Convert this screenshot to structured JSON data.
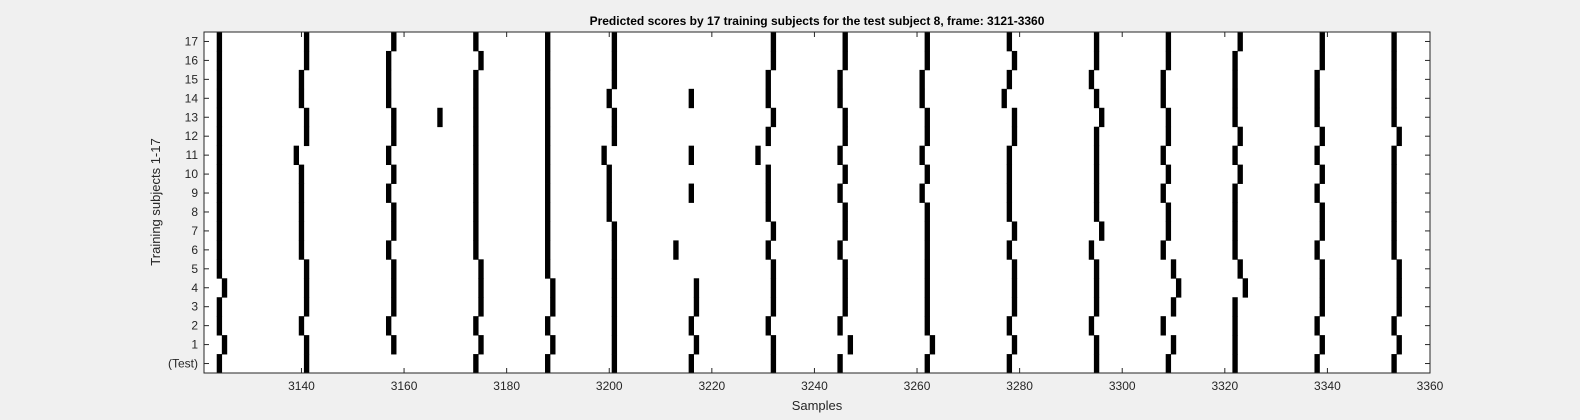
{
  "chart_data": {
    "type": "heatmap",
    "title": "Predicted scores by 17 training subjects for the test subject 8, frame: 3121-3360",
    "xlabel": "Samples",
    "ylabel": "Training subjects 1-17",
    "xlim": [
      3121,
      3360
    ],
    "x_ticks": [
      3140,
      3160,
      3180,
      3200,
      3220,
      3240,
      3260,
      3280,
      3300,
      3320,
      3340,
      3360
    ],
    "row_labels": [
      "(Test)",
      "1",
      "2",
      "3",
      "4",
      "5",
      "6",
      "7",
      "8",
      "9",
      "10",
      "11",
      "12",
      "13",
      "14",
      "15",
      "16",
      "17"
    ],
    "grid": false,
    "rows": [
      {
        "label": "(Test)",
        "marks": [
          3124,
          3141,
          3174,
          3188,
          3201,
          3216,
          3232,
          3245,
          3262,
          3278,
          3295,
          3309,
          3322,
          3338,
          3353
        ]
      },
      {
        "label": "1",
        "marks": [
          3125,
          3141,
          3158,
          3175,
          3189,
          3201,
          3217,
          3232,
          3247,
          3263,
          3279,
          3295,
          3310,
          3322,
          3339,
          3354
        ]
      },
      {
        "label": "2",
        "marks": [
          3124,
          3140,
          3157,
          3174,
          3188,
          3201,
          3216,
          3231,
          3245,
          3262,
          3278,
          3294,
          3308,
          3322,
          3338,
          3353
        ]
      },
      {
        "label": "3",
        "marks": [
          3124,
          3141,
          3158,
          3175,
          3189,
          3201,
          3217,
          3232,
          3246,
          3262,
          3279,
          3295,
          3310,
          3322,
          3339,
          3354
        ]
      },
      {
        "label": "4",
        "marks": [
          3125,
          3141,
          3158,
          3175,
          3189,
          3201,
          3217,
          3232,
          3246,
          3262,
          3279,
          3295,
          3311,
          3324,
          3339,
          3354
        ]
      },
      {
        "label": "5",
        "marks": [
          3124,
          3141,
          3158,
          3175,
          3188,
          3201,
          3232,
          3246,
          3262,
          3279,
          3295,
          3310,
          3323,
          3339,
          3354
        ]
      },
      {
        "label": "6",
        "marks": [
          3124,
          3140,
          3157,
          3174,
          3188,
          3201,
          3213,
          3231,
          3245,
          3262,
          3278,
          3294,
          3308,
          3322,
          3338,
          3353
        ]
      },
      {
        "label": "7",
        "marks": [
          3124,
          3140,
          3158,
          3174,
          3188,
          3201,
          3232,
          3246,
          3262,
          3279,
          3296,
          3309,
          3322,
          3339,
          3353
        ]
      },
      {
        "label": "8",
        "marks": [
          3124,
          3140,
          3158,
          3174,
          3188,
          3200,
          3231,
          3246,
          3262,
          3278,
          3295,
          3309,
          3322,
          3339,
          3353
        ]
      },
      {
        "label": "9",
        "marks": [
          3124,
          3140,
          3157,
          3174,
          3188,
          3200,
          3216,
          3231,
          3245,
          3261,
          3278,
          3295,
          3308,
          3322,
          3338,
          3353
        ]
      },
      {
        "label": "10",
        "marks": [
          3124,
          3140,
          3158,
          3174,
          3188,
          3200,
          3231,
          3246,
          3262,
          3278,
          3295,
          3309,
          3323,
          3339,
          3353
        ]
      },
      {
        "label": "11",
        "marks": [
          3124,
          3139,
          3157,
          3174,
          3188,
          3199,
          3216,
          3229,
          3245,
          3261,
          3278,
          3295,
          3308,
          3322,
          3338,
          3353
        ]
      },
      {
        "label": "12",
        "marks": [
          3124,
          3141,
          3158,
          3174,
          3188,
          3201,
          3231,
          3246,
          3262,
          3279,
          3295,
          3309,
          3323,
          3339,
          3354
        ]
      },
      {
        "label": "13",
        "marks": [
          3124,
          3141,
          3158,
          3167,
          3174,
          3188,
          3201,
          3232,
          3246,
          3262,
          3279,
          3296,
          3309,
          3322,
          3338,
          3353
        ]
      },
      {
        "label": "14",
        "marks": [
          3124,
          3140,
          3157,
          3174,
          3188,
          3200,
          3216,
          3231,
          3245,
          3261,
          3277,
          3295,
          3308,
          3322,
          3338,
          3353
        ]
      },
      {
        "label": "15",
        "marks": [
          3124,
          3140,
          3157,
          3174,
          3188,
          3201,
          3231,
          3245,
          3261,
          3278,
          3294,
          3308,
          3322,
          3338,
          3353
        ]
      },
      {
        "label": "16",
        "marks": [
          3124,
          3141,
          3157,
          3175,
          3188,
          3201,
          3232,
          3246,
          3262,
          3279,
          3295,
          3309,
          3322,
          3339,
          3353
        ]
      },
      {
        "label": "17",
        "marks": [
          3124,
          3141,
          3158,
          3174,
          3188,
          3201,
          3232,
          3246,
          3262,
          3278,
          3295,
          3309,
          3323,
          3339,
          3353
        ]
      }
    ],
    "colors": {
      "background": "#f0f0f0",
      "plot_area": "#ffffff",
      "mark": "#000000",
      "axis": "#262626"
    }
  }
}
